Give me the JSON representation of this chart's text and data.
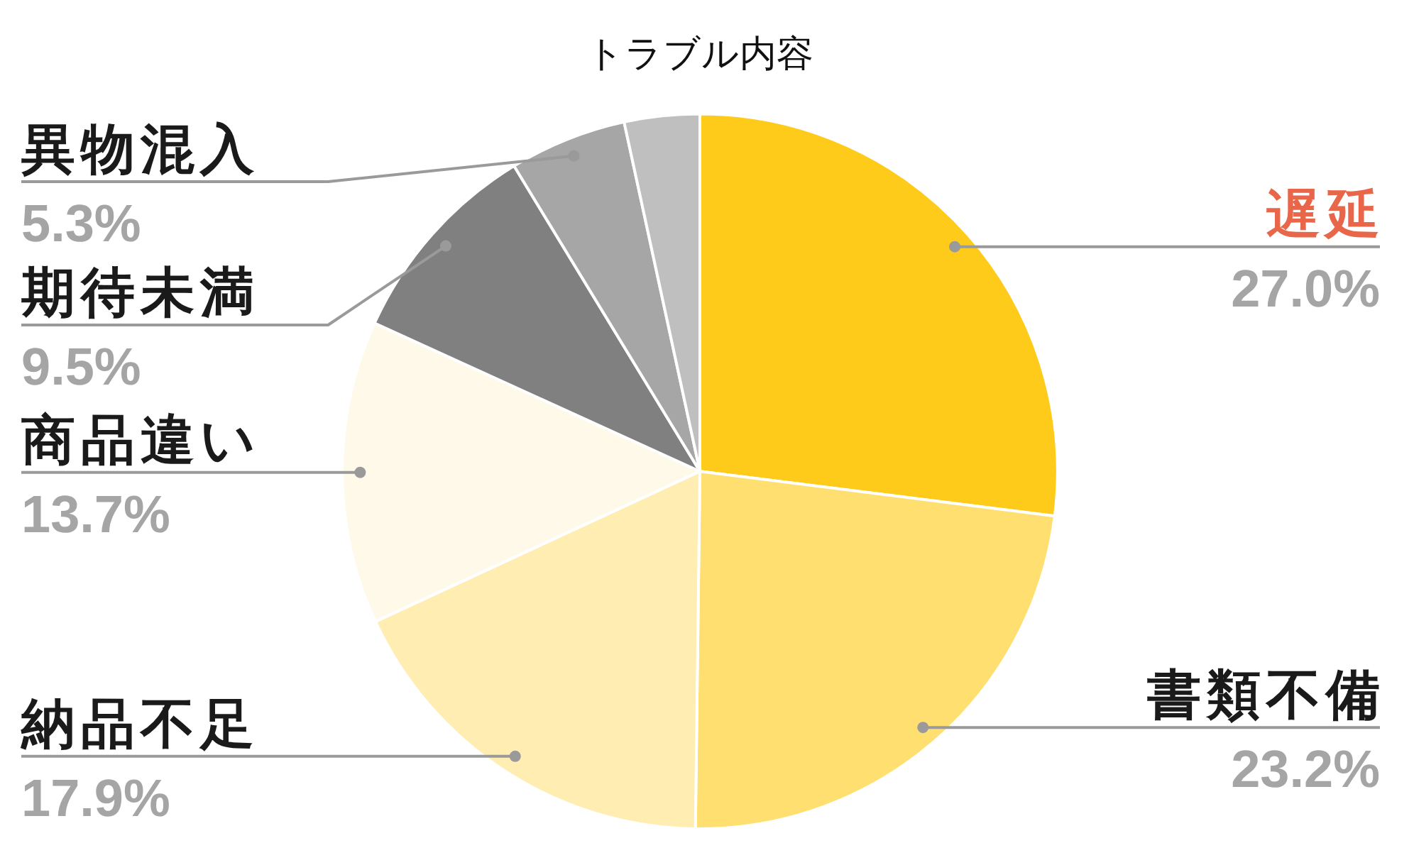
{
  "chart_data": {
    "type": "pie",
    "title": "トラブル内容",
    "categories": [
      "遅延",
      "書類不備",
      "納品不足",
      "商品違い",
      "期待未満",
      "異物混入",
      null
    ],
    "values": [
      27.0,
      23.2,
      17.9,
      13.7,
      9.5,
      5.3,
      3.4
    ],
    "colors": [
      "#ffcb1a",
      "#ffdf70",
      "#ffedb2",
      "#fef9e9",
      "#808080",
      "#a6a6a6",
      "#bfbfbf"
    ],
    "value_labels": [
      "27.0%",
      "23.2%",
      "17.9%",
      "13.7%",
      "9.5%",
      "5.3%",
      null
    ]
  }
}
